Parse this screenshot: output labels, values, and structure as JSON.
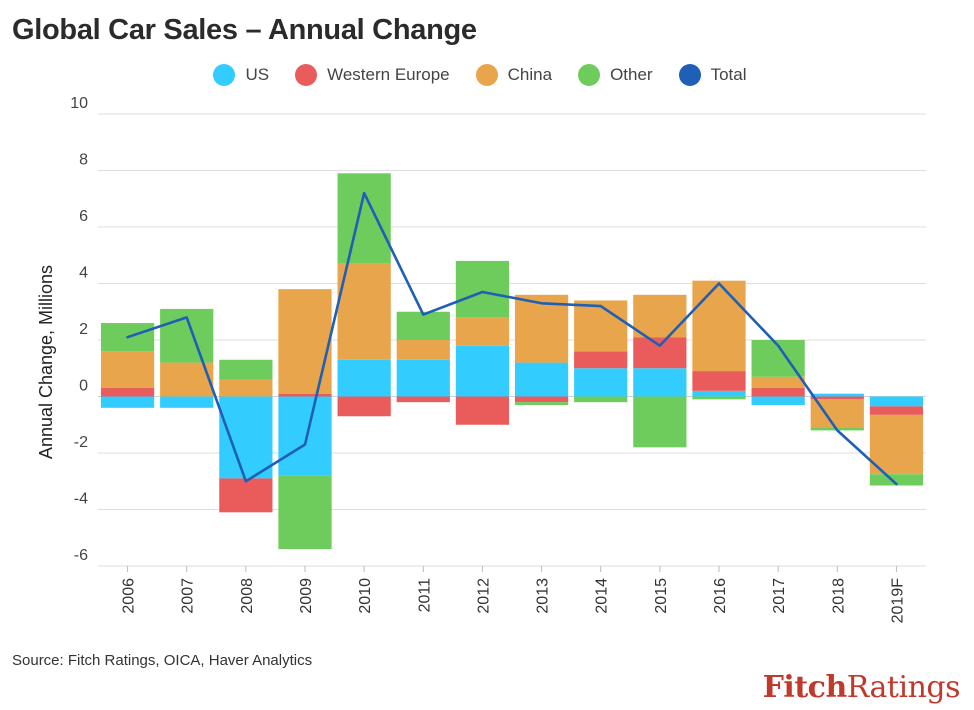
{
  "title": "Global Car Sales – Annual Change",
  "source": "Source: Fitch Ratings, OICA, Haver Analytics",
  "logo": {
    "part1": "Fitch",
    "part2": "Ratings"
  },
  "chart_data": {
    "type": "bar",
    "stacked": true,
    "title": "Global Car Sales – Annual Change",
    "ylabel": "Annual Change, Millions",
    "xlabel": "",
    "ylim": [
      -6,
      10
    ],
    "yticks": [
      10,
      8,
      6,
      4,
      2,
      0,
      -2,
      -4,
      -6
    ],
    "grid": true,
    "legend_position": "top",
    "categories": [
      "2006",
      "2007",
      "2008",
      "2009",
      "2010",
      "2011",
      "2012",
      "2013",
      "2014",
      "2015",
      "2016",
      "2017",
      "2018",
      "2019F"
    ],
    "series": [
      {
        "name": "US",
        "color": "#33ccff",
        "values": [
          -0.4,
          -0.4,
          -2.9,
          -2.8,
          1.3,
          1.3,
          1.8,
          1.2,
          1.0,
          1.0,
          0.2,
          -0.3,
          0.1,
          -0.35
        ]
      },
      {
        "name": "Western Europe",
        "color": "#ea5c5c",
        "values": [
          0.3,
          0.0,
          -1.2,
          0.1,
          -0.7,
          -0.2,
          -1.0,
          -0.2,
          0.6,
          1.1,
          0.7,
          0.3,
          -0.1,
          -0.3
        ]
      },
      {
        "name": "China",
        "color": "#e8a54b",
        "values": [
          1.3,
          1.2,
          0.6,
          3.7,
          3.4,
          0.7,
          1.0,
          2.4,
          1.8,
          1.5,
          3.2,
          0.4,
          -1.0,
          -2.1
        ]
      },
      {
        "name": "Other",
        "color": "#6ecc5c",
        "values": [
          1.0,
          1.9,
          0.7,
          -2.6,
          3.2,
          1.0,
          2.0,
          -0.1,
          -0.2,
          -1.8,
          -0.1,
          1.3,
          -0.1,
          -0.4
        ]
      }
    ],
    "total": {
      "name": "Total",
      "color": "#1f5fb5",
      "values": [
        2.1,
        2.8,
        -3.0,
        -1.7,
        7.2,
        2.9,
        3.7,
        3.3,
        3.2,
        1.8,
        4.0,
        1.8,
        -1.2,
        -3.1
      ]
    }
  }
}
